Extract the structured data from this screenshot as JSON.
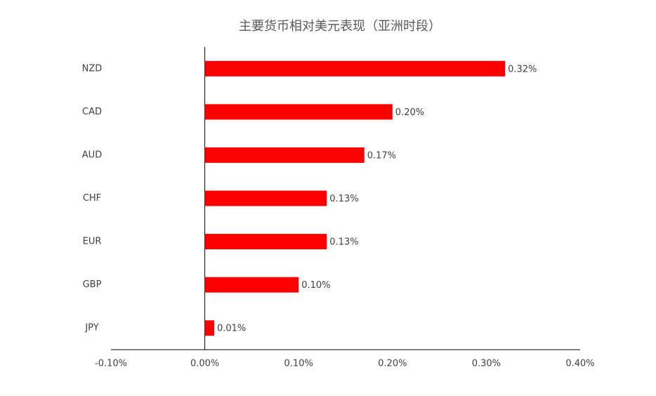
{
  "chart_data": {
    "type": "hbar",
    "title": "主要货币相对美元表现（亚洲时段）",
    "categories": [
      "NZD",
      "CAD",
      "AUD",
      "CHF",
      "EUR",
      "GBP",
      "JPY"
    ],
    "values": [
      0.32,
      0.2,
      0.17,
      0.13,
      0.13,
      0.1,
      0.01
    ],
    "value_labels": [
      "0.32%",
      "0.20%",
      "0.17%",
      "0.13%",
      "0.13%",
      "0.10%",
      "0.01%"
    ],
    "color": "#ff0000",
    "xlim": [
      -0.1,
      0.4
    ],
    "xticks": [
      {
        "value": -0.1,
        "label": "-0.10%"
      },
      {
        "value": 0,
        "label": "0.00%"
      },
      {
        "value": 0.1,
        "label": "0.10%"
      },
      {
        "value": 0.2,
        "label": "0.20%"
      },
      {
        "value": 0.3,
        "label": "0.30%"
      },
      {
        "value": 0.4,
        "label": "0.40%"
      }
    ],
    "grid": false
  }
}
